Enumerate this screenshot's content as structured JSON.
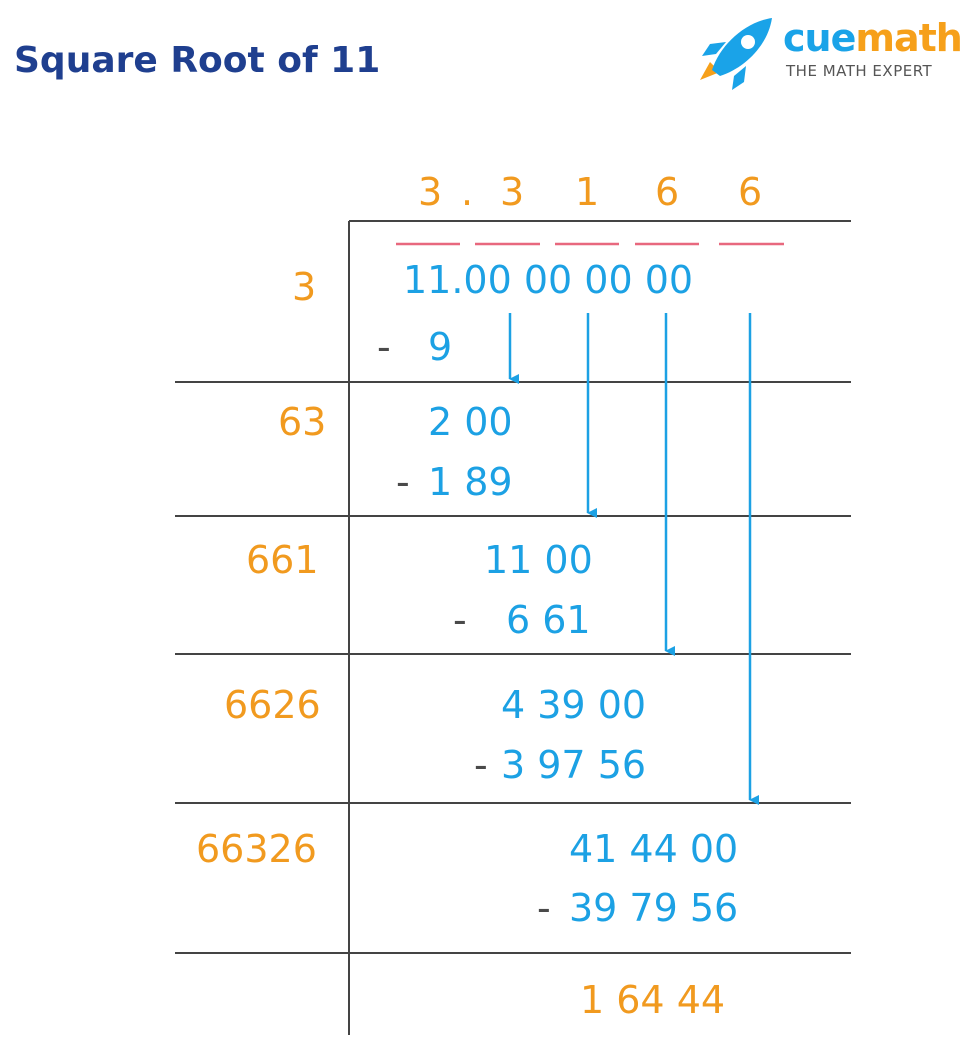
{
  "title": "Square Root of 11",
  "logo": {
    "name_part1": "cue",
    "name_part2": "math",
    "tagline": "THE MATH EXPERT"
  },
  "colors": {
    "orange": "#f19a1f",
    "blue": "#1ca1e4",
    "title": "#1f3f8f",
    "underline": "#e8687e",
    "line": "#444444"
  },
  "quotient": [
    "3",
    ".",
    "3",
    "1",
    "6",
    "6"
  ],
  "dividend": "11.00 00 00 00",
  "rows": [
    {
      "divisor": "3",
      "top": "",
      "sub_sign": "-",
      "sub": "9"
    },
    {
      "divisor": "63",
      "top": "2 00",
      "sub_sign": "-",
      "sub": "1 89"
    },
    {
      "divisor": "661",
      "top": "11 00",
      "sub_sign": "-",
      "sub": "6 61"
    },
    {
      "divisor": "6626",
      "top": "4 39 00",
      "sub_sign": "-",
      "sub": "3 97 56"
    },
    {
      "divisor": "66326",
      "top": "41 44 00",
      "sub_sign": "-",
      "sub": "39 79 56"
    }
  ],
  "remainder": "1 64 44"
}
